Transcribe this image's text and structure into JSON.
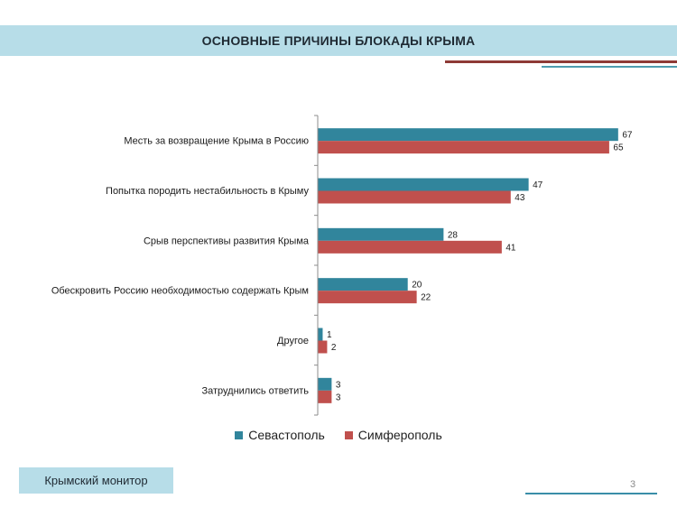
{
  "header": {
    "title": "ОСНОВНЫЕ ПРИЧИНЫ БЛОКАДЫ КРЫМА"
  },
  "footer": {
    "label": "Крымский монитор",
    "page_number": "3"
  },
  "colors": {
    "sevastopol": "#31859c",
    "simferopol": "#c0504d",
    "accent_bar": "#b7dde8"
  },
  "chart_data": {
    "type": "bar",
    "orientation": "horizontal",
    "title": "",
    "xlabel": "",
    "ylabel": "",
    "xlim": [
      0,
      70
    ],
    "grid": false,
    "legend_position": "bottom",
    "categories": [
      "Месть за возвращение Крыма в Россию",
      "Попытка породить нестабильность в Крыму",
      "Срыв перспективы развития Крыма",
      "Обескровить Россию необходимостью содержать Крым",
      "Другое",
      "Затруднились ответить"
    ],
    "series": [
      {
        "name": "Севастополь",
        "color": "#31859c",
        "values": [
          67,
          47,
          28,
          20,
          1,
          3
        ]
      },
      {
        "name": "Симферополь",
        "color": "#c0504d",
        "values": [
          65,
          43,
          41,
          22,
          2,
          3
        ]
      }
    ]
  }
}
